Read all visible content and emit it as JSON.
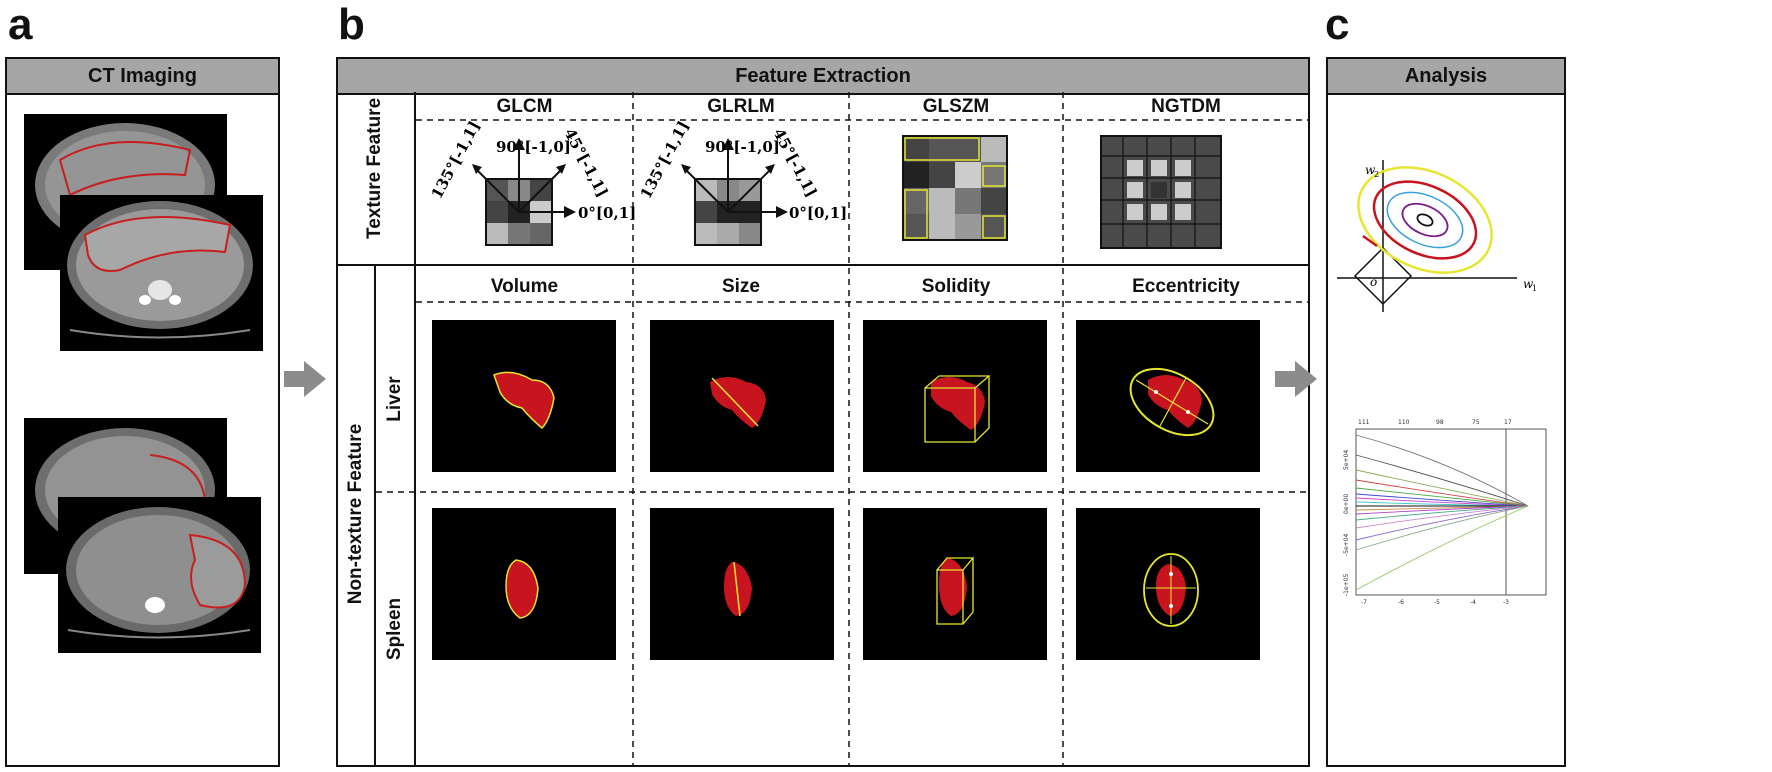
{
  "panels": {
    "a": {
      "letter": "a",
      "header": "CT Imaging"
    },
    "b": {
      "letter": "b",
      "header": "Feature Extraction"
    },
    "c": {
      "letter": "c",
      "header": "Analysis"
    }
  },
  "texture": {
    "row_label": "Texture Feature",
    "columns": [
      "GLCM",
      "GLRLM",
      "GLSZM",
      "NGTDM"
    ],
    "direction_labels": {
      "d135": "135°[-1,1]",
      "d90": "90°[-1,0]",
      "d45": "45°[-1,1]",
      "d0": "0°[0,1]"
    }
  },
  "nontexture": {
    "row_label": "Non-texture Feature",
    "columns": [
      "Volume",
      "Size",
      "Solidity",
      "Eccentricity"
    ],
    "organs": [
      "Liver",
      "Spleen"
    ]
  },
  "analysis": {
    "axis_w2": "w",
    "axis_w2_sub": "2",
    "axis_w1": "w",
    "axis_w1_sub": "1",
    "origin": "o",
    "lasso_top_ticks": [
      "111",
      "110",
      "98",
      "75",
      "17"
    ],
    "lasso_bottom_ticks": [
      "-7",
      "-6",
      "-5",
      "-4",
      "-3"
    ],
    "lasso_y_ticks": [
      "5e+04",
      "0e+00",
      "-5e+04",
      "-1e+05"
    ]
  },
  "colors": {
    "header_gray": "#a6a6a6",
    "arrow_gray": "#8c8c8c",
    "organ_red": "#c8141e",
    "outline_yellow": "#e6e632"
  }
}
